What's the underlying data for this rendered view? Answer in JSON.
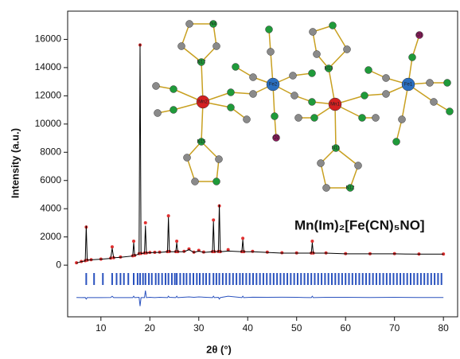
{
  "chart_data": {
    "type": "xrd",
    "xlabel": "2θ (°)",
    "ylabel": "Intensity (a.u.)",
    "annotation": "Mn(Im)₂[Fe(CN)₅NO]",
    "xlim": [
      3.2,
      82.9
    ],
    "ylim": [
      -3660,
      18000
    ],
    "xticks": [
      10,
      20,
      30,
      40,
      50,
      60,
      70,
      80
    ],
    "yticks": [
      0,
      2000,
      4000,
      6000,
      8000,
      10000,
      12000,
      14000,
      16000
    ],
    "x": [
      5,
      6,
      6.8,
      7.0,
      7.2,
      8,
      10,
      12,
      12.3,
      12.6,
      14,
      16.5,
      16.7,
      16.9,
      17.8,
      18.0,
      18.2,
      18.9,
      19.1,
      19.3,
      20,
      21,
      22,
      23.6,
      23.8,
      24.0,
      25.3,
      25.5,
      25.7,
      27,
      28,
      29,
      30,
      31,
      32.8,
      33.0,
      33.2,
      34.0,
      34.2,
      34.4,
      36,
      38.8,
      39.0,
      39.2,
      41,
      44,
      47,
      50,
      53,
      53.2,
      53.4,
      56,
      60,
      65,
      70,
      75,
      80
    ],
    "series": [
      {
        "color": "#e03030",
        "marker": "dot",
        "values": [
          170,
          260,
          320,
          2700,
          360,
          390,
          430,
          500,
          1300,
          530,
          580,
          660,
          1700,
          690,
          820,
          15600,
          830,
          860,
          3000,
          870,
          900,
          910,
          920,
          960,
          3500,
          970,
          960,
          1700,
          960,
          980,
          1150,
          920,
          1050,
          930,
          960,
          3200,
          960,
          970,
          4200,
          960,
          1100,
          960,
          1900,
          960,
          980,
          920,
          880,
          870,
          860,
          1700,
          860,
          870,
          820,
          810,
          820,
          790,
          790
        ]
      },
      {
        "color": "#000000",
        "marker": "line",
        "values": [
          150,
          250,
          300,
          2800,
          350,
          380,
          420,
          480,
          1200,
          520,
          560,
          650,
          1600,
          680,
          800,
          15700,
          820,
          850,
          2800,
          860,
          880,
          900,
          900,
          950,
          3400,
          950,
          950,
          1600,
          950,
          950,
          1100,
          900,
          1000,
          900,
          950,
          3100,
          950,
          950,
          4300,
          950,
          1000,
          950,
          1800,
          950,
          950,
          900,
          850,
          850,
          850,
          1600,
          850,
          850,
          800,
          800,
          800,
          780,
          780
        ]
      },
      {
        "color": "#2a52be",
        "marker": "line",
        "values": [
          -2290,
          -2300,
          -2290,
          -2400,
          -2300,
          -2300,
          -2300,
          -2290,
          -2200,
          -2300,
          -2300,
          -2300,
          -2200,
          -2300,
          -2280,
          -2900,
          -2300,
          -2300,
          -1800,
          -2300,
          -2280,
          -2300,
          -2280,
          -2300,
          -2200,
          -2280,
          -2300,
          -2200,
          -2300,
          -2270,
          -2250,
          -2280,
          -2250,
          -2270,
          -2300,
          -2200,
          -2300,
          -2280,
          -2400,
          -2300,
          -2200,
          -2300,
          -2200,
          -2300,
          -2270,
          -2280,
          -2270,
          -2280,
          -2300,
          -2200,
          -2300,
          -2280,
          -2280,
          -2290,
          -2280,
          -2290,
          -2290
        ]
      }
    ],
    "bragg_ticks": {
      "color": "#2a52be",
      "x": [
        7.0,
        8.6,
        10.4,
        12.3,
        13.2,
        14.0,
        14.7,
        15.6,
        16.7,
        17.5,
        18.0,
        18.6,
        19.1,
        19.8,
        20.4,
        21.2,
        21.8,
        22.5,
        23.2,
        23.8,
        24.5,
        25.1,
        25.5,
        26.2,
        26.9,
        27.5,
        28.2,
        28.9,
        29.6,
        30.2,
        30.9,
        31.5,
        32.2,
        33.0,
        33.6,
        34.2,
        34.9,
        35.6,
        36.3,
        37.0,
        37.7,
        38.4,
        39.0,
        39.7,
        40.4,
        41.1,
        41.8,
        42.5,
        43.2,
        43.9,
        44.6,
        45.3,
        46.0,
        46.7,
        47.4,
        48.1,
        48.8,
        49.5,
        50.2,
        50.9,
        51.6,
        52.3,
        53.0,
        53.7,
        54.4,
        55.1,
        55.8,
        56.5,
        57.2,
        57.9,
        58.6,
        59.3,
        60.0,
        60.7,
        61.4,
        62.1,
        62.8,
        63.5,
        64.2,
        64.9,
        65.6,
        66.3,
        67.0,
        67.7,
        68.4,
        69.1,
        69.8,
        70.5,
        71.2,
        71.9,
        72.6,
        73.3,
        74.0,
        74.7,
        75.4,
        76.1,
        76.8,
        77.5,
        78.2,
        78.9,
        79.6
      ]
    },
    "inset": {
      "atom_labels": [
        "Mn2",
        "Fe2",
        "Mn1",
        "Fe1",
        "N17",
        "N15",
        "N13",
        "N11",
        "O2",
        "O1",
        "N4",
        "N12"
      ]
    }
  }
}
